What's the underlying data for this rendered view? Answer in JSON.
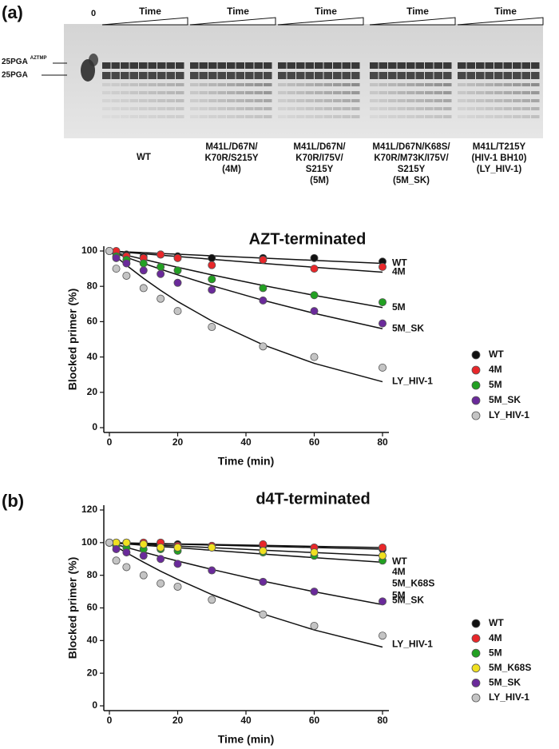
{
  "panel_labels": [
    "(a)",
    "(b)"
  ],
  "gel": {
    "zero_label": "0",
    "time_label": "Time",
    "marker_upper": {
      "text": "25PGA",
      "superscript": "AZTMP"
    },
    "marker_lower": "25PGA",
    "lanes": [
      [
        "WT"
      ],
      [
        "M41L/D67N/",
        "K70R/S215Y",
        "(4M)"
      ],
      [
        "M41L/D67N/",
        "K70R/I75V/",
        "S215Y",
        "(5M)"
      ],
      [
        "M41L/D67N/K68S/",
        "K70R/M73K/I75V/",
        "S215Y",
        "(5M_SK)"
      ],
      [
        "M41L/T215Y",
        "(HIV-1 BH10)",
        "(LY_HIV-1)"
      ]
    ]
  },
  "chart_data": [
    {
      "type": "scatter",
      "title": "AZT-terminated",
      "xlabel": "Time (min)",
      "ylabel": "Blocked primer (%)",
      "x": [
        0,
        2,
        5,
        10,
        15,
        20,
        30,
        45,
        60,
        80
      ],
      "xlim": [
        0,
        80
      ],
      "xticks": [
        0,
        20,
        40,
        60,
        80
      ],
      "ylim": [
        0,
        100
      ],
      "yticks": [
        0,
        20,
        40,
        60,
        80,
        100
      ],
      "legend": "outside right",
      "series": [
        {
          "name": "WT",
          "color": "#111111",
          "values": [
            100,
            99,
            98,
            97,
            98,
            97,
            96,
            96,
            96,
            94
          ],
          "fit": [
            100,
            99.8,
            99.5,
            99.1,
            98.6,
            98.2,
            97.3,
            96,
            94.7,
            93
          ]
        },
        {
          "name": "4M",
          "color": "#e8272a",
          "values": [
            100,
            100,
            97,
            96,
            98,
            96,
            92,
            95,
            90,
            91
          ],
          "fit": [
            100,
            99.7,
            99.2,
            98.4,
            97.6,
            96.9,
            95.3,
            93,
            90.8,
            88
          ]
        },
        {
          "name": "5M",
          "color": "#22a022",
          "values": [
            100,
            97,
            95,
            93,
            91,
            89,
            84,
            79,
            75,
            71
          ],
          "fit": [
            100,
            99,
            97.6,
            95.3,
            93,
            90.8,
            86.5,
            80.5,
            74.9,
            68
          ]
        },
        {
          "name": "5M_SK",
          "color": "#6a2a9a",
          "values": [
            100,
            96,
            93,
            89,
            87,
            82,
            78,
            72,
            66,
            59
          ],
          "fit": [
            100,
            98.6,
            96.4,
            93,
            89.7,
            86.5,
            80.4,
            72.1,
            64.7,
            56
          ]
        },
        {
          "name": "LY_HIV-1",
          "color": "#c4c4c4",
          "values": [
            100,
            90,
            86,
            79,
            73,
            66,
            57,
            46,
            40,
            34
          ],
          "fit": [
            100,
            96.7,
            91.9,
            84.5,
            77.7,
            71.4,
            60.4,
            46.9,
            36.4,
            26
          ]
        }
      ]
    },
    {
      "type": "scatter",
      "title": "d4T-terminated",
      "xlabel": "Time (min)",
      "ylabel": "Blocked primer (%)",
      "x": [
        0,
        2,
        5,
        10,
        15,
        20,
        30,
        45,
        60,
        80
      ],
      "xlim": [
        0,
        80
      ],
      "xticks": [
        0,
        20,
        40,
        60,
        80
      ],
      "ylim": [
        0,
        120
      ],
      "yticks": [
        0,
        20,
        40,
        60,
        80,
        100,
        120
      ],
      "legend": "outside right",
      "series": [
        {
          "name": "WT",
          "color": "#111111",
          "values": [
            100,
            100,
            100,
            100,
            100,
            99,
            98,
            98,
            97,
            96
          ],
          "fit": [
            100,
            99.9,
            99.8,
            99.6,
            99.4,
            99.2,
            98.9,
            98.3,
            97.7,
            97
          ]
        },
        {
          "name": "4M",
          "color": "#e8272a",
          "values": [
            100,
            100,
            100,
            100,
            100,
            98,
            98,
            99,
            97,
            97
          ],
          "fit": [
            100,
            99.9,
            99.7,
            99.5,
            99.2,
            99,
            98.5,
            97.7,
            97,
            96
          ]
        },
        {
          "name": "5M",
          "color": "#22a022",
          "values": [
            100,
            98,
            97,
            96,
            96,
            95,
            97,
            94,
            92,
            89
          ],
          "fit": [
            100,
            99.7,
            99.2,
            98.4,
            97.6,
            96.9,
            95.3,
            93,
            90.8,
            88
          ]
        },
        {
          "name": "5M_K68S",
          "color": "#f0e020",
          "values": [
            100,
            100,
            100,
            99,
            97,
            97,
            97,
            95,
            94,
            92
          ],
          "fit": [
            100,
            99.8,
            99.5,
            99,
            98.4,
            97.9,
            96.9,
            95.4,
            93.9,
            92
          ]
        },
        {
          "name": "5M_SK",
          "color": "#6a2a9a",
          "values": [
            100,
            96,
            94,
            92,
            90,
            87,
            83,
            76,
            70,
            64
          ],
          "fit": [
            100,
            98.8,
            97.1,
            94.2,
            91.4,
            88.7,
            83.6,
            76.4,
            69.9,
            62
          ]
        },
        {
          "name": "LY_HIV-1",
          "color": "#c4c4c4",
          "values": [
            100,
            89,
            85,
            80,
            75,
            73,
            65,
            56,
            49,
            43
          ],
          "fit": [
            100,
            97.5,
            93.8,
            88,
            82.5,
            77.5,
            68.2,
            56.3,
            46.5,
            36
          ]
        }
      ]
    }
  ]
}
